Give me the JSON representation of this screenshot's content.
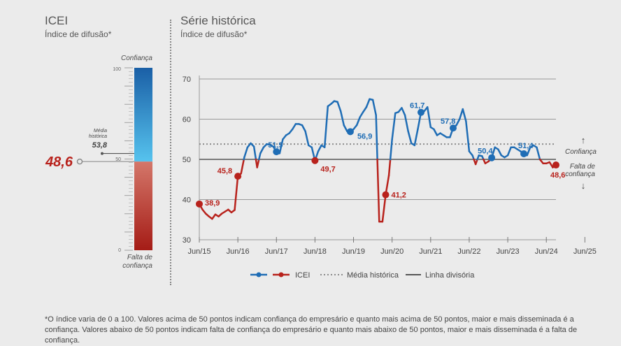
{
  "left_panel": {
    "title": "ICEI",
    "subtitle": "Índice de difusão*",
    "top_label": "Confiança",
    "bottom_label_1": "Falta de",
    "bottom_label_2": "confiança",
    "ticks": [
      "100",
      "50",
      "0"
    ],
    "media_label_1": "Média",
    "media_label_2": "histórica",
    "media_value": "53,8",
    "current_value": "48,6",
    "current_numeric": 48.6,
    "media_numeric": 53.8
  },
  "right_panel": {
    "title": "Série histórica",
    "subtitle": "Índice de difusão*",
    "confianca_label": "Confiança",
    "falta_label_1": "Falta de",
    "falta_label_2": "confiança"
  },
  "legend": {
    "icei": "ICEI",
    "media": "Média histórica",
    "linha": "Linha divisória"
  },
  "footnote": "*O índice varia de 0 a 100. Valores acima de 50 pontos indicam confiança do empresário e quanto mais acima de 50 pontos, maior e mais disseminada é a confiança. Valores abaixo de 50 pontos indicam falta de confiança do empresário e quanto mais abaixo de 50 pontos, maior e mais disseminada é a falta de confiança.",
  "colors": {
    "blue": "#1f6db5",
    "red": "#b8221c",
    "grid": "#9a9a9a",
    "mean": "#8c8c8c",
    "divisoria": "#555555"
  },
  "chart_data": {
    "type": "line",
    "x_tick_labels": [
      "Jun/15",
      "Jun/16",
      "Jun/17",
      "Jun/18",
      "Jun/19",
      "Jun/20",
      "Jun/21",
      "Jun/22",
      "Jun/23",
      "Jun/24",
      "Jun/25"
    ],
    "y_tick_labels": [
      "30",
      "40",
      "50",
      "60",
      "70"
    ],
    "ylim": [
      30,
      70
    ],
    "mean": 53.8,
    "threshold": 50,
    "series": [
      {
        "name": "ICEI",
        "start": "Jun/15",
        "frequency": "monthly",
        "values": [
          38.9,
          37.5,
          36.5,
          35.8,
          35.2,
          36.3,
          35.8,
          36.5,
          37.0,
          37.5,
          36.8,
          37.4,
          45.8,
          46.5,
          50.5,
          53.0,
          54.0,
          53.2,
          48.0,
          51.5,
          53.0,
          53.8,
          53.6,
          53.2,
          51.9,
          51.5,
          55.0,
          56.0,
          56.5,
          57.5,
          58.8,
          58.8,
          58.5,
          57.0,
          53.5,
          53.0,
          49.7,
          52.0,
          53.5,
          53.0,
          63.2,
          63.8,
          64.5,
          64.3,
          62.0,
          58.5,
          57.0,
          56.9,
          57.5,
          58.5,
          60.5,
          61.8,
          63.0,
          65.0,
          64.8,
          61.0,
          34.5,
          34.5,
          41.2,
          46.0,
          55.0,
          61.5,
          61.8,
          62.8,
          61.0,
          57.0,
          54.0,
          53.5,
          57.5,
          61.7,
          62.0,
          63.0,
          58.0,
          57.5,
          56.0,
          56.5,
          56.0,
          55.5,
          55.5,
          57.8,
          58.5,
          60.0,
          62.5,
          59.5,
          52.0,
          51.0,
          48.8,
          51.0,
          50.8,
          49.0,
          49.5,
          50.4,
          53.0,
          52.5,
          51.0,
          50.5,
          51.0,
          53.0,
          53.0,
          52.5,
          52.0,
          51.4,
          51.0,
          53.0,
          53.5,
          53.0,
          50.0,
          49.0,
          49.0,
          49.3,
          48.0,
          48.6
        ],
        "annotations": [
          {
            "index": 0,
            "label": "38,9"
          },
          {
            "index": 12,
            "label": "45,8"
          },
          {
            "index": 24,
            "label": "51,9"
          },
          {
            "index": 36,
            "label": "49,7"
          },
          {
            "index": 47,
            "label": "56,9"
          },
          {
            "index": 58,
            "label": "41,2"
          },
          {
            "index": 69,
            "label": "61,7"
          },
          {
            "index": 79,
            "label": "57,8"
          },
          {
            "index": 91,
            "label": "50,4"
          },
          {
            "index": 101,
            "label": "51,4"
          },
          {
            "index": 111,
            "label": "48,6"
          }
        ]
      }
    ]
  }
}
